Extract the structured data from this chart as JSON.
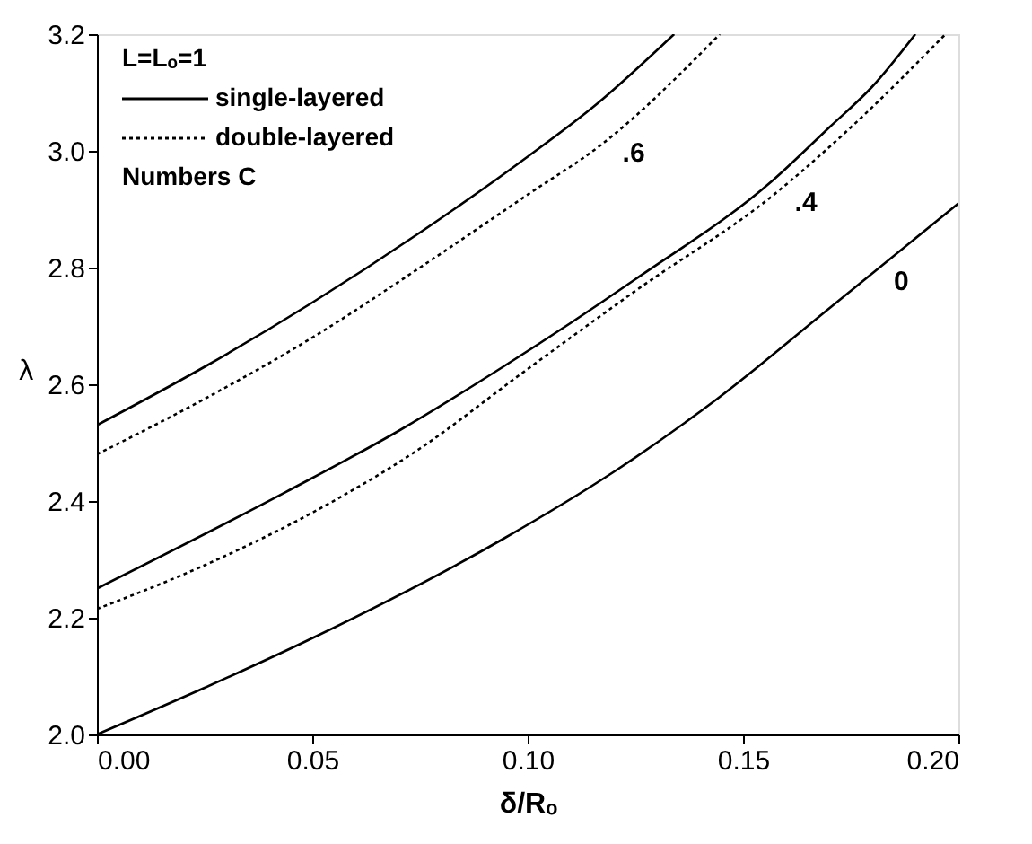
{
  "chart_data": {
    "type": "line",
    "xlabel": "δ/Rₒ",
    "ylabel": "λ",
    "legend_title": "L=Lₒ=1",
    "legend": "top left",
    "xlim": [
      0,
      0.2
    ],
    "xticks": [
      {
        "value": 0,
        "label": "0.00"
      },
      0.05,
      {
        "value": 0.1,
        "label": "0.10"
      },
      0.15,
      {
        "value": 0.2,
        "label": "0.20"
      }
    ],
    "ylim": [
      2.0,
      3.2
    ],
    "yticks": [
      {
        "value": 2.0,
        "label": "2.0"
      },
      2.2,
      2.4,
      2.6,
      2.8,
      {
        "value": 3.0,
        "label": "3.0"
      },
      3.2
    ],
    "grid": false,
    "marker": "none",
    "series": [
      {
        "name": "single-layered",
        "color": "#000000",
        "line_style": "solid",
        "x": [
          0,
          0.025,
          0.05,
          0.0943,
          0.12,
          0.144,
          0.17,
          0.18,
          0.2
        ],
        "values": [
          2.0,
          2.08,
          2.165,
          2.335,
          2.45,
          2.575,
          2.73,
          2.79,
          2.91
        ]
      },
      {
        "color": "#000000",
        "line_style": "solid",
        "x": [
          0,
          0.044,
          0.07,
          0.0943,
          0.125,
          0.157,
          0.17,
          0.18,
          0.19
        ],
        "values": [
          2.25,
          2.416,
          2.52,
          2.63,
          2.78,
          2.95,
          3.04,
          3.11,
          3.2
        ]
      },
      {
        "name": "double-layered",
        "color": "#000000",
        "line_style": "dotted",
        "x": [
          0,
          0.025,
          0.05,
          0.075,
          0.0985,
          0.125,
          0.157,
          0.175,
          0.197
        ],
        "values": [
          2.215,
          2.29,
          2.38,
          2.49,
          2.618,
          2.76,
          2.924,
          3.04,
          3.2
        ]
      },
      {
        "color": "#000000",
        "line_style": "solid",
        "x": [
          0,
          0.025,
          0.05,
          0.075,
          0.1,
          0.116,
          0.134
        ],
        "values": [
          2.53,
          2.63,
          2.74,
          2.86,
          2.99,
          3.08,
          3.2
        ]
      },
      {
        "color": "#000000",
        "line_style": "dotted",
        "x": [
          0,
          0.025,
          0.05,
          0.075,
          0.1,
          0.117,
          0.1446
        ],
        "values": [
          2.48,
          2.575,
          2.68,
          2.8,
          2.925,
          3.01,
          3.2
        ]
      }
    ],
    "annotations": [
      "Numbers C",
      {
        "text": ".6",
        "x": 0.117,
        "y": 3.01
      },
      {
        "text": ".4",
        "x": 0.157,
        "y": 2.924
      },
      {
        "text": "0",
        "x": 0.18,
        "y": 2.79
      }
    ]
  }
}
